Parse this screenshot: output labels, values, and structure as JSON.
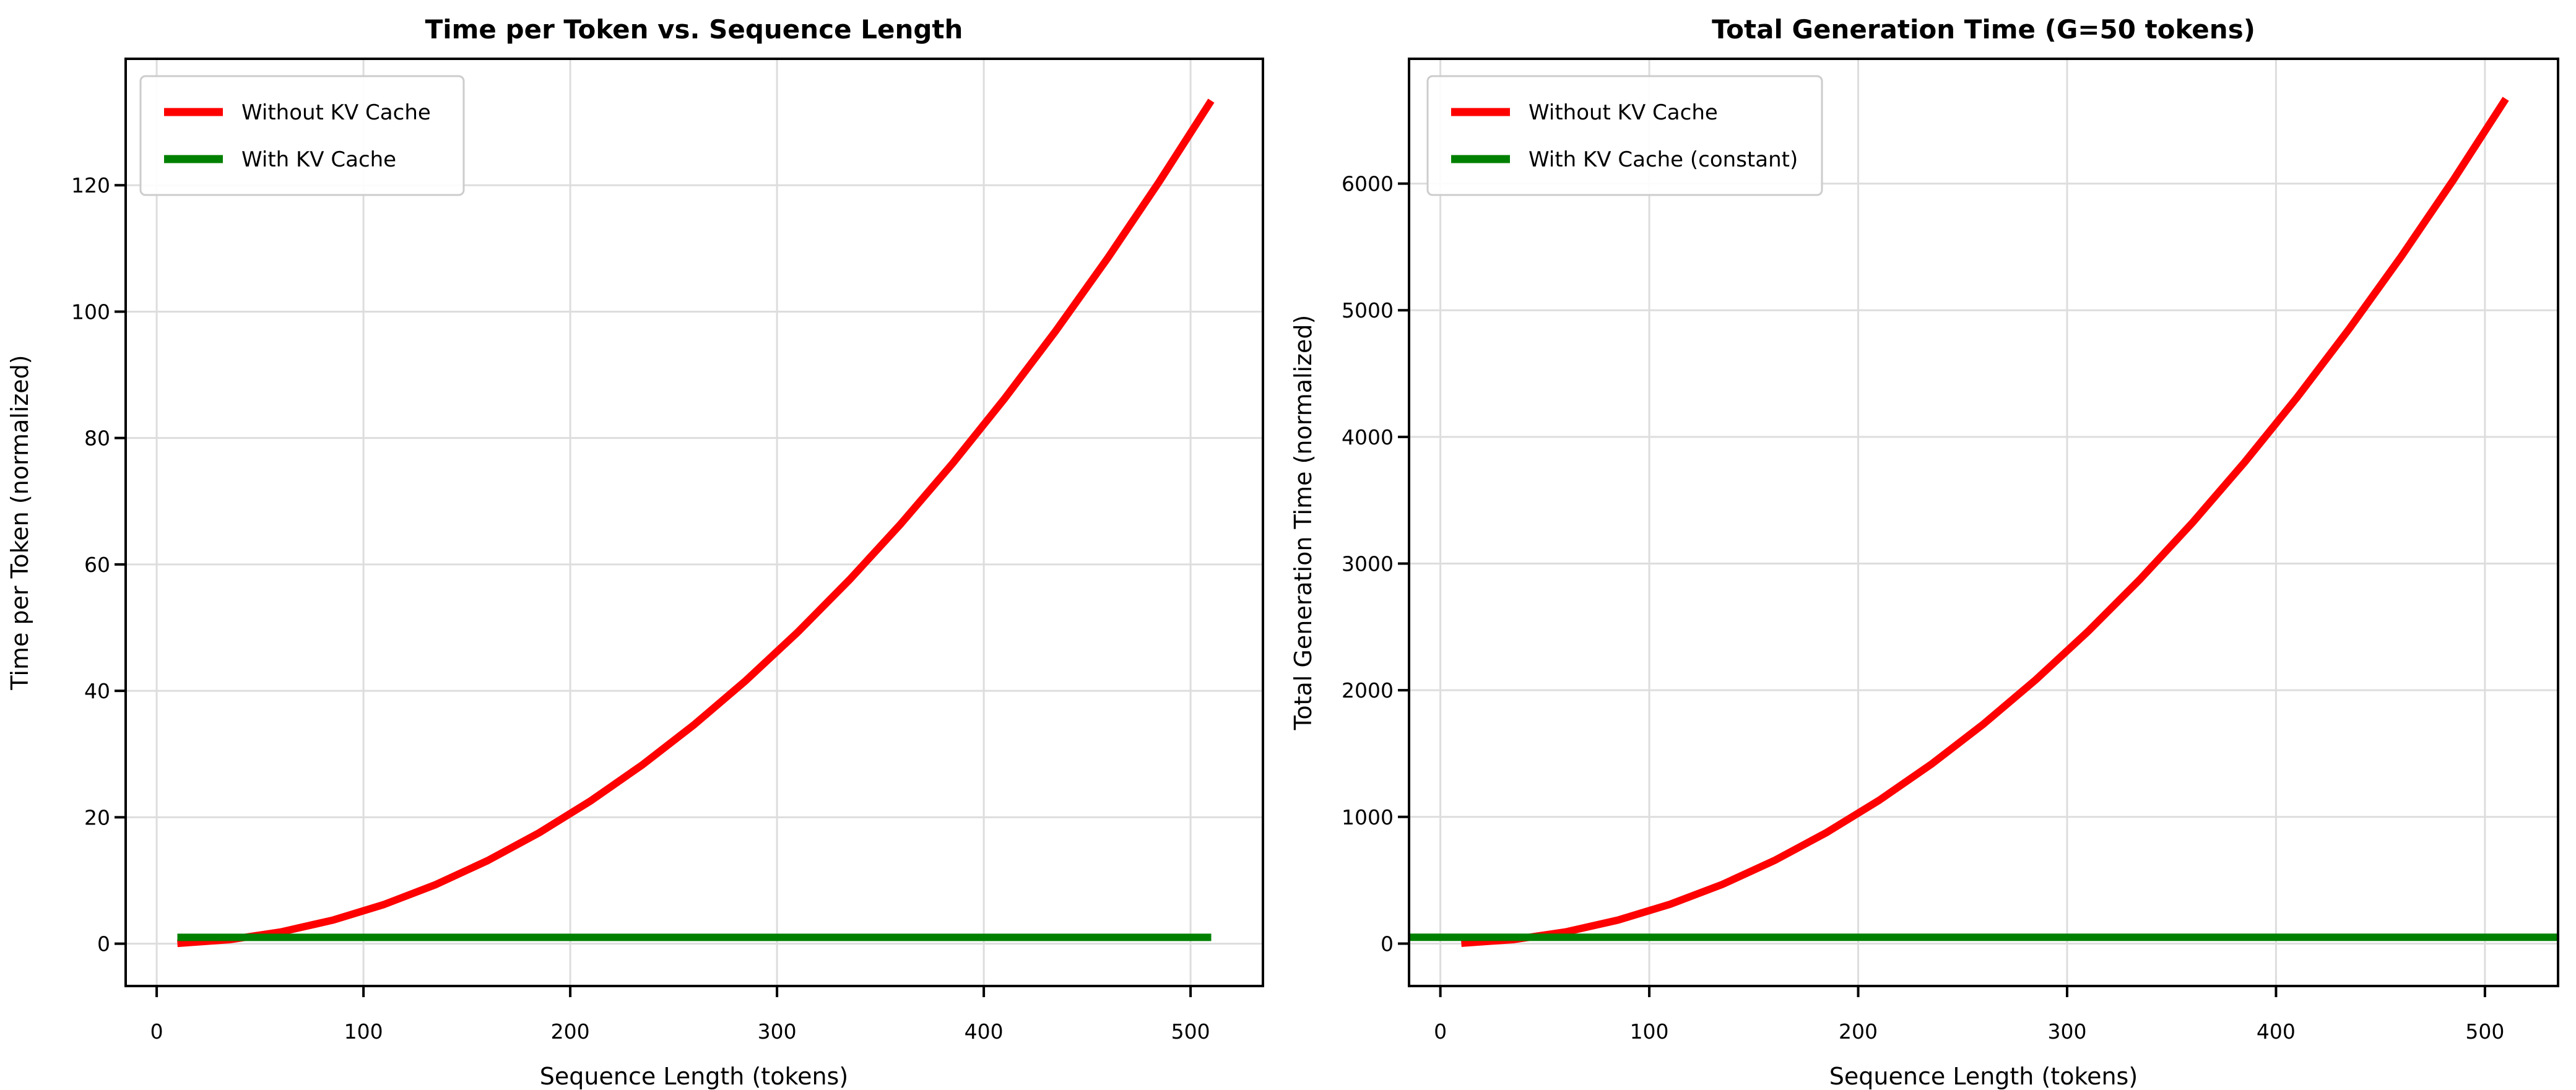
{
  "figure": {
    "background": "#ffffff",
    "grid_color": "#dddddd",
    "spine_color": "#000000",
    "tick_color": "#000000"
  },
  "chart_data": [
    {
      "type": "line",
      "title": "Time per Token vs. Sequence Length",
      "xlabel": "Sequence Length (tokens)",
      "ylabel": "Time per Token (normalized)",
      "xlim": [
        -15,
        535
      ],
      "ylim": [
        -6.7,
        140
      ],
      "xticks": [
        0,
        100,
        200,
        300,
        400,
        500
      ],
      "yticks": [
        0,
        20,
        40,
        60,
        80,
        100,
        120
      ],
      "grid": true,
      "legend_position": "upper-left",
      "x": [
        10,
        35,
        60,
        85,
        110,
        135,
        160,
        185,
        210,
        235,
        260,
        285,
        310,
        335,
        360,
        385,
        410,
        435,
        460,
        485,
        510
      ],
      "series": [
        {
          "name": "Without KV Cache",
          "color": "#ff0000",
          "full_width": false,
          "values": [
            0.05,
            0.63,
            1.85,
            3.71,
            6.21,
            9.35,
            13.13,
            17.55,
            22.62,
            28.32,
            34.67,
            41.65,
            49.28,
            57.55,
            66.46,
            76.01,
            86.21,
            97.04,
            108.51,
            120.63,
            133.38
          ]
        },
        {
          "name": "With KV Cache",
          "color": "#008000",
          "full_width": false,
          "constant_value": 1.0
        }
      ]
    },
    {
      "type": "line",
      "title": "Total Generation Time (G=50 tokens)",
      "xlabel": "Sequence Length (tokens)",
      "ylabel": "Total Generation Time (normalized)",
      "xlim": [
        -15,
        535
      ],
      "ylim": [
        -335,
        6985
      ],
      "xticks": [
        0,
        100,
        200,
        300,
        400,
        500
      ],
      "yticks": [
        0,
        1000,
        2000,
        3000,
        4000,
        5000,
        6000
      ],
      "grid": true,
      "legend_position": "upper-left",
      "x": [
        10,
        35,
        60,
        85,
        110,
        135,
        160,
        185,
        210,
        235,
        260,
        285,
        310,
        335,
        360,
        385,
        410,
        435,
        460,
        485,
        510
      ],
      "series": [
        {
          "name": "Without KV Cache",
          "color": "#ff0000",
          "full_width": false,
          "values": [
            2.6,
            31.4,
            92.3,
            185.3,
            310.3,
            467.3,
            656.4,
            877.6,
            1130.8,
            1416.0,
            1733.3,
            2082.7,
            2464.1,
            2877.6,
            3323.1,
            3800.6,
            4310.3,
            4851.9,
            5425.6,
            6031.4,
            6669.2
          ]
        },
        {
          "name": "With KV Cache (constant)",
          "color": "#008000",
          "full_width": true,
          "constant_value": 50.0
        }
      ]
    }
  ]
}
